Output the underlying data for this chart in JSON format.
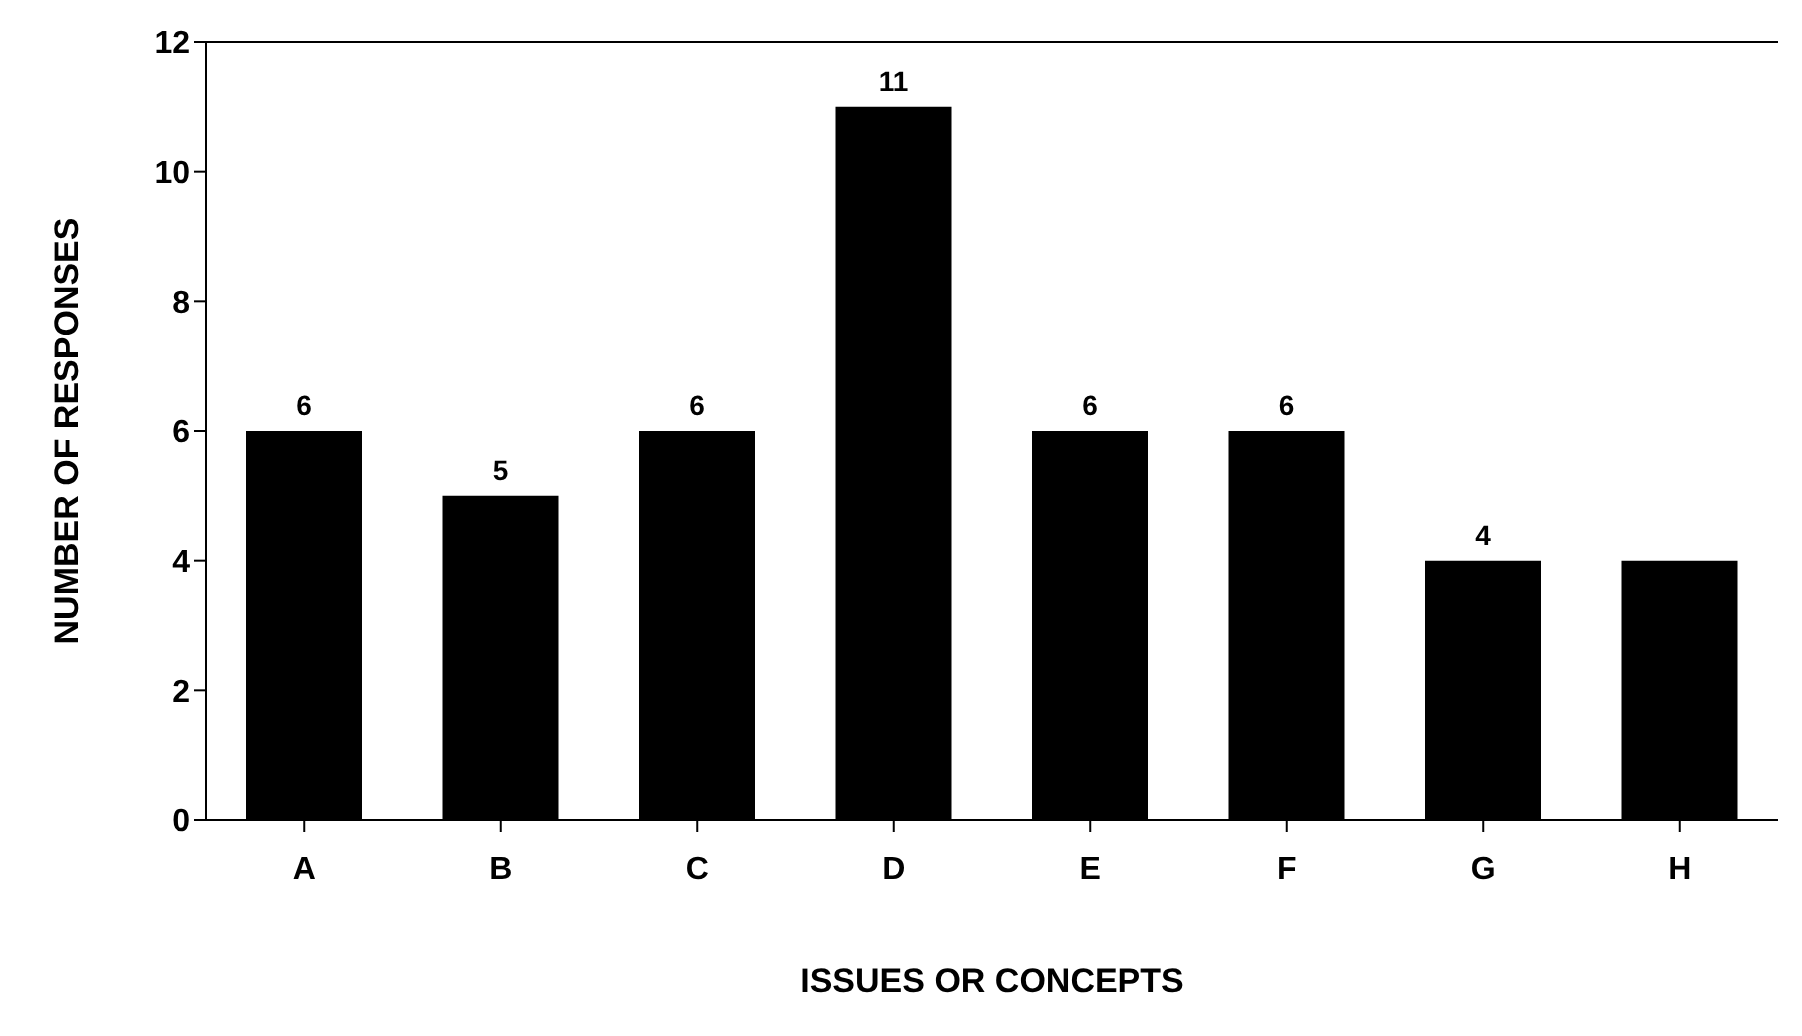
{
  "chart_data": {
    "type": "bar",
    "xlabel": "ISSUES OR CONCEPTS",
    "ylabel": "NUMBER OF RESPONSES",
    "categories": [
      "A",
      "B",
      "C",
      "D",
      "E",
      "F",
      "G",
      "H"
    ],
    "values": [
      6,
      5,
      6,
      11,
      6,
      6,
      4,
      4
    ],
    "value_labels": [
      "6",
      "5",
      "6",
      "11",
      "6",
      "6",
      "4",
      null
    ],
    "color": "#000000",
    "ylim": [
      0,
      12
    ],
    "yticks": [
      0,
      2,
      4,
      6,
      8,
      10,
      12
    ],
    "grid": false,
    "legend": false
  }
}
